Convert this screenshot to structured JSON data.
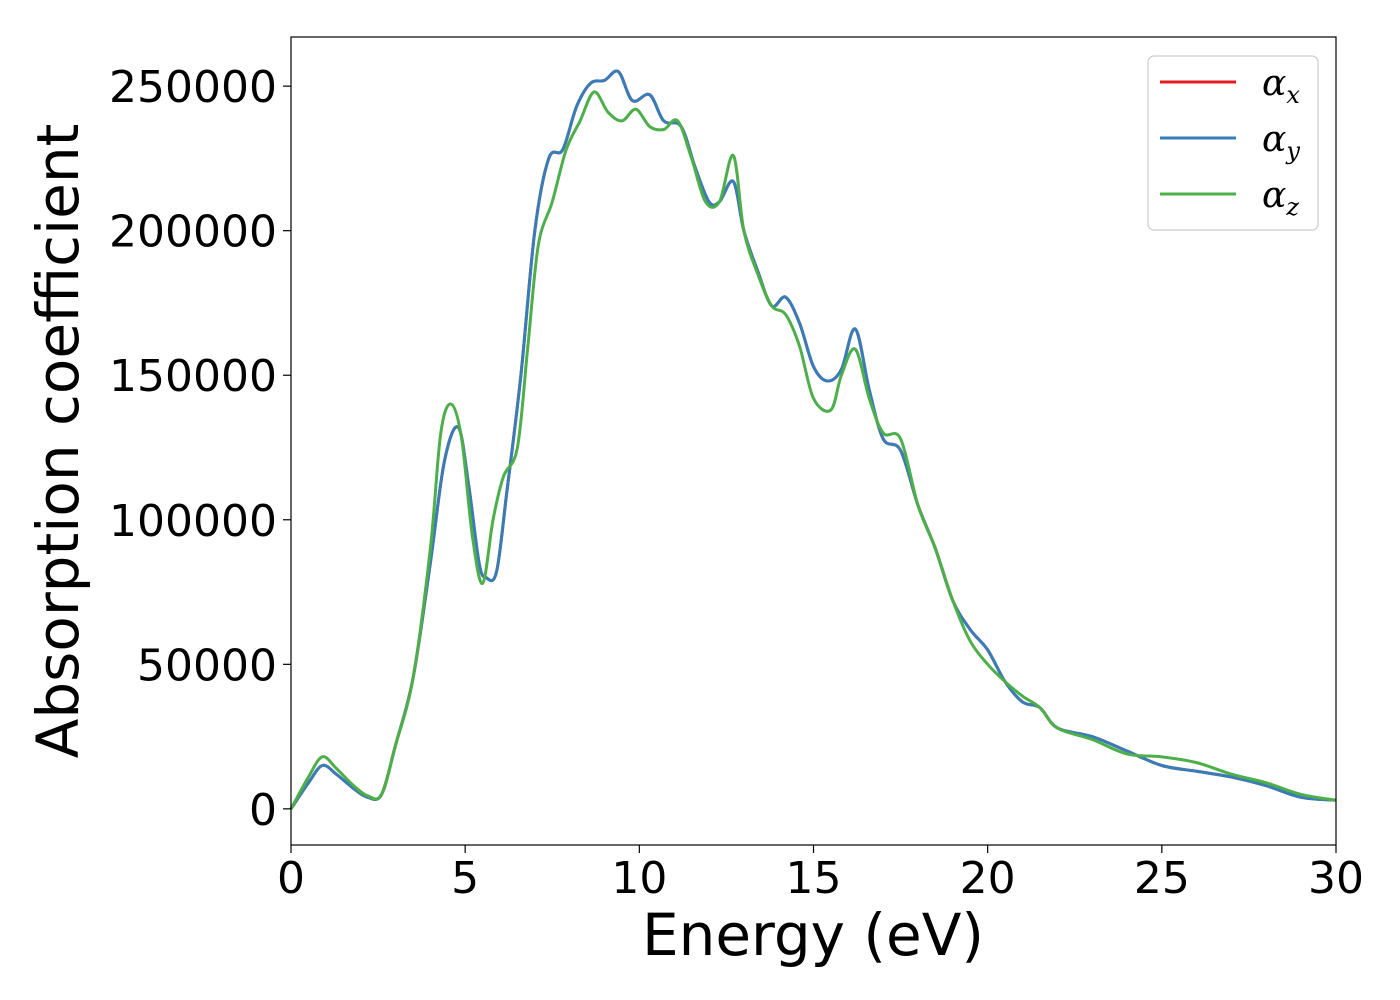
{
  "chart_data": {
    "type": "line",
    "title": "",
    "xlabel": "Energy (eV)",
    "ylabel": "Absorption coefficient",
    "xlim": [
      0,
      30
    ],
    "ylim": [
      -12500,
      267000
    ],
    "x_ticks": [
      0,
      5,
      10,
      15,
      20,
      25,
      30
    ],
    "x_tick_labels": [
      "0",
      "5",
      "10",
      "15",
      "20",
      "25",
      "30"
    ],
    "y_ticks": [
      0,
      50000,
      100000,
      150000,
      200000,
      250000
    ],
    "y_tick_labels": [
      "0",
      "50000",
      "100000",
      "150000",
      "200000",
      "250000"
    ],
    "grid": false,
    "legend": {
      "position": "top-right",
      "entries": [
        {
          "symbol": "α",
          "subscript": "x",
          "color": "#e41a1c"
        },
        {
          "symbol": "α",
          "subscript": "y",
          "color": "#377eb8"
        },
        {
          "symbol": "α",
          "subscript": "z",
          "color": "#4daf4a"
        }
      ]
    },
    "series": [
      {
        "color": "#e41a1c",
        "x": [
          0,
          0.5,
          0.9,
          1.3,
          1.8,
          2.2,
          2.6,
          3.0,
          3.5,
          4.0,
          4.4,
          4.8,
          5.1,
          5.4,
          5.6,
          5.9,
          6.2,
          6.6,
          7.0,
          7.4,
          7.8,
          8.2,
          8.6,
          9.0,
          9.4,
          9.8,
          10.3,
          10.7,
          11.2,
          11.6,
          12.0,
          12.3,
          12.7,
          13.0,
          13.4,
          13.8,
          14.2,
          14.6,
          15.0,
          15.4,
          15.8,
          16.2,
          16.6,
          17.0,
          17.5,
          18.0,
          18.5,
          19.0,
          19.5,
          20.0,
          20.5,
          21.0,
          21.5,
          22.0,
          23.0,
          24.0,
          25.0,
          26.0,
          27.0,
          28.0,
          29.0,
          30.0
        ],
        "y": [
          0,
          9000,
          15000,
          12000,
          7000,
          4000,
          5000,
          22000,
          45000,
          85000,
          120000,
          132000,
          112000,
          85000,
          80000,
          82000,
          110000,
          150000,
          200000,
          225000,
          228000,
          243000,
          251000,
          252000,
          255000,
          245000,
          247000,
          238000,
          236000,
          222000,
          210000,
          210000,
          217000,
          200000,
          186000,
          174000,
          177000,
          168000,
          153000,
          148000,
          152000,
          166000,
          145000,
          128000,
          124000,
          105000,
          90000,
          72000,
          62000,
          55000,
          44000,
          37000,
          35000,
          28000,
          25000,
          20000,
          15000,
          13000,
          11000,
          8000,
          4000,
          3000
        ]
      },
      {
        "color": "#377eb8",
        "x": [
          0,
          0.5,
          0.9,
          1.3,
          1.8,
          2.2,
          2.6,
          3.0,
          3.5,
          4.0,
          4.4,
          4.8,
          5.1,
          5.4,
          5.6,
          5.9,
          6.2,
          6.6,
          7.0,
          7.4,
          7.8,
          8.2,
          8.6,
          9.0,
          9.4,
          9.8,
          10.3,
          10.7,
          11.2,
          11.6,
          12.0,
          12.3,
          12.7,
          13.0,
          13.4,
          13.8,
          14.2,
          14.6,
          15.0,
          15.4,
          15.8,
          16.2,
          16.6,
          17.0,
          17.5,
          18.0,
          18.5,
          19.0,
          19.5,
          20.0,
          20.5,
          21.0,
          21.5,
          22.0,
          23.0,
          24.0,
          25.0,
          26.0,
          27.0,
          28.0,
          29.0,
          30.0
        ],
        "y": [
          0,
          9000,
          15000,
          12000,
          7000,
          4000,
          5000,
          22000,
          45000,
          85000,
          120000,
          132000,
          112000,
          85000,
          80000,
          82000,
          110000,
          150000,
          200000,
          225000,
          228000,
          243000,
          251000,
          252000,
          255000,
          245000,
          247000,
          238000,
          236000,
          222000,
          210000,
          210000,
          217000,
          200000,
          186000,
          174000,
          177000,
          168000,
          153000,
          148000,
          152000,
          166000,
          145000,
          128000,
          124000,
          105000,
          90000,
          72000,
          62000,
          55000,
          44000,
          37000,
          35000,
          28000,
          25000,
          20000,
          15000,
          13000,
          11000,
          8000,
          4000,
          3000
        ]
      },
      {
        "color": "#4daf4a",
        "x": [
          0,
          0.5,
          0.9,
          1.3,
          1.8,
          2.2,
          2.6,
          3.0,
          3.5,
          4.0,
          4.3,
          4.6,
          4.9,
          5.2,
          5.5,
          5.8,
          6.1,
          6.5,
          6.8,
          7.1,
          7.5,
          7.9,
          8.3,
          8.7,
          9.1,
          9.5,
          9.9,
          10.3,
          10.7,
          11.1,
          11.5,
          11.9,
          12.3,
          12.7,
          13.0,
          13.4,
          13.8,
          14.2,
          14.6,
          15.0,
          15.5,
          15.8,
          16.2,
          16.6,
          17.0,
          17.5,
          18.0,
          18.5,
          19.0,
          19.5,
          20.0,
          20.5,
          21.0,
          21.5,
          22.0,
          23.0,
          24.0,
          25.0,
          26.0,
          27.0,
          28.0,
          29.0,
          30.0
        ],
        "y": [
          0,
          11000,
          18000,
          14000,
          8000,
          4500,
          5000,
          22000,
          45000,
          90000,
          130000,
          140000,
          128000,
          95000,
          78000,
          100000,
          115000,
          125000,
          160000,
          195000,
          210000,
          228000,
          238000,
          248000,
          241000,
          238000,
          242000,
          236000,
          235000,
          238000,
          225000,
          210000,
          210000,
          226000,
          200000,
          185000,
          174000,
          171000,
          160000,
          142000,
          138000,
          150000,
          159000,
          142000,
          130000,
          128000,
          105000,
          90000,
          72000,
          58000,
          50000,
          44000,
          39000,
          35000,
          28000,
          24000,
          19000,
          18000,
          16000,
          12000,
          9000,
          5000,
          3000
        ]
      }
    ]
  }
}
